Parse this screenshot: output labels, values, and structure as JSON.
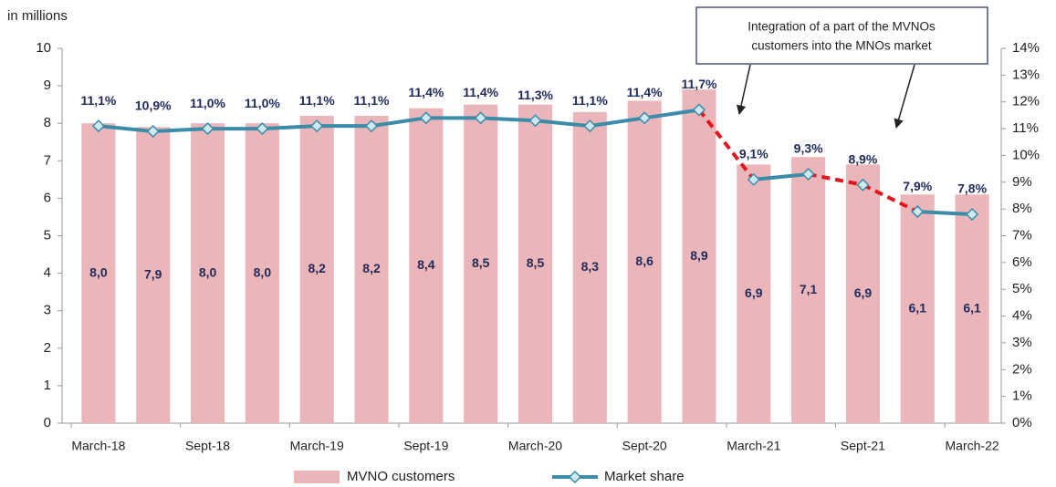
{
  "chart_data": {
    "type": "bar_line",
    "y_axis_label": "in millions",
    "categories": [
      "March-18",
      null,
      "Sept-18",
      null,
      "March-19",
      null,
      "Sept-19",
      null,
      "March-20",
      null,
      "Sept-20",
      null,
      "March-21",
      null,
      "Sept-21",
      null,
      "March-22"
    ],
    "series": [
      {
        "name": "MVNO customers",
        "color": "#ebb6b9",
        "values": [
          8.0,
          7.9,
          8.0,
          8.0,
          8.2,
          8.2,
          8.4,
          8.5,
          8.5,
          8.3,
          8.6,
          8.9,
          6.9,
          7.1,
          6.9,
          6.1,
          6.1
        ],
        "value_labels": [
          "8,0",
          "7,9",
          "8,0",
          "8,0",
          "8,2",
          "8,2",
          "8,4",
          "8,5",
          "8,5",
          "8,3",
          "8,6",
          "8,9",
          "6,9",
          "7,1",
          "6,9",
          "6,1",
          "6,1"
        ]
      },
      {
        "name": "Market share",
        "color": "#3b8ca9",
        "marker_fill": "#cfe9f1",
        "axis": "y2",
        "values": [
          11.1,
          10.9,
          11.0,
          11.0,
          11.1,
          11.1,
          11.4,
          11.4,
          11.3,
          11.1,
          11.4,
          11.7,
          9.1,
          9.3,
          8.9,
          7.9,
          7.8
        ],
        "value_labels": [
          "11,1%",
          "10,9%",
          "11,0%",
          "11,0%",
          "11,1%",
          "11,1%",
          "11,4%",
          "11,4%",
          "11,3%",
          "11,1%",
          "11,4%",
          "11,7%",
          "9,1%",
          "9,3%",
          "8,9%",
          "7,9%",
          "7,8%"
        ],
        "dashed_segments": [
          11,
          13,
          14
        ],
        "dash_color": "#e3151d"
      }
    ],
    "ylim": [
      0,
      10
    ],
    "yticks": [
      0,
      1,
      2,
      3,
      4,
      5,
      6,
      7,
      8,
      9,
      10
    ],
    "y2lim": [
      0,
      14
    ],
    "y2ticks": [
      {
        "value": 0,
        "label": "0%"
      },
      {
        "value": 1,
        "label": "1%"
      },
      {
        "value": 2,
        "label": "2%"
      },
      {
        "value": 3,
        "label": "3%"
      },
      {
        "value": 4,
        "label": "4%"
      },
      {
        "value": 5,
        "label": "5%"
      },
      {
        "value": 6,
        "label": "6%"
      },
      {
        "value": 7,
        "label": "7%"
      },
      {
        "value": 8,
        "label": "8%"
      },
      {
        "value": 9,
        "label": "9%"
      },
      {
        "value": 10,
        "label": "10%"
      },
      {
        "value": 11,
        "label": "11%"
      },
      {
        "value": 12,
        "label": "12%"
      },
      {
        "value": 13,
        "label": "13%"
      },
      {
        "value": 14,
        "label": "14%"
      }
    ],
    "annotation": [
      "Integration of a part of the MVNOs",
      "customers into the MNOs market"
    ]
  }
}
